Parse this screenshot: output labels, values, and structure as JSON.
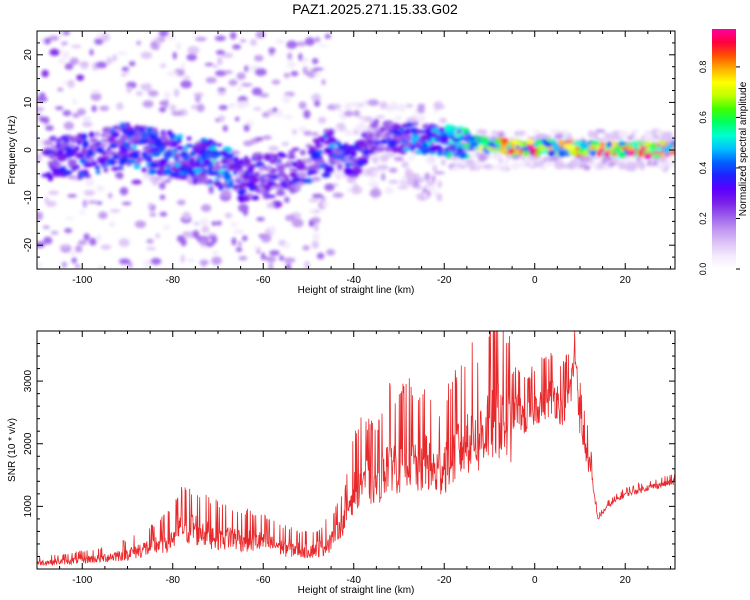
{
  "title": "PAZ1.2025.271.15.33.G02",
  "colorbar": {
    "label": "Normalized spectral amplitude",
    "range": [
      0.0,
      0.95
    ],
    "ticks": [
      "0.0",
      "0.2",
      "0.4",
      "0.6",
      "0.8"
    ],
    "colors": [
      "#ffffff",
      "#f3eafc",
      "#dcc2f6",
      "#bf93f0",
      "#9a5cec",
      "#7a1fe8",
      "#5a00ff",
      "#2020ff",
      "#0060ff",
      "#00bfff",
      "#00ffd0",
      "#00ff60",
      "#40ff00",
      "#c0ff00",
      "#ffff00",
      "#ffb000",
      "#ff5000",
      "#ff0040",
      "#ff00a0"
    ]
  },
  "chart_data": [
    {
      "type": "heatmap",
      "xlabel": "Height of straight line (km)",
      "ylabel": "Frequency (Hz)",
      "xlim": [
        -110,
        31
      ],
      "ylim": [
        -25,
        25
      ],
      "xticks": [
        -100,
        -80,
        -60,
        -40,
        -20,
        0,
        20
      ],
      "yticks": [
        20,
        10,
        0,
        -10,
        -20
      ],
      "description_points": [
        {
          "x": -100,
          "y": -1.5,
          "v": 0.35
        },
        {
          "x": -90,
          "y": 1.0,
          "v": 0.4
        },
        {
          "x": -80,
          "y": -1.0,
          "v": 0.4
        },
        {
          "x": -70,
          "y": -3.0,
          "v": 0.45
        },
        {
          "x": -65,
          "y": -6.0,
          "v": 0.35
        },
        {
          "x": -55,
          "y": -5.0,
          "v": 0.3
        },
        {
          "x": -45,
          "y": -0.5,
          "v": 0.4
        },
        {
          "x": -40,
          "y": -2.5,
          "v": 0.35
        },
        {
          "x": -35,
          "y": 3.0,
          "v": 0.3
        },
        {
          "x": -25,
          "y": 2.5,
          "v": 0.45
        },
        {
          "x": -15,
          "y": 1.5,
          "v": 0.55
        },
        {
          "x": -5,
          "y": 0.5,
          "v": 0.85
        },
        {
          "x": 5,
          "y": 0.5,
          "v": 0.8
        },
        {
          "x": 15,
          "y": 0.3,
          "v": 0.85
        },
        {
          "x": 28,
          "y": 0.0,
          "v": 0.9
        }
      ]
    },
    {
      "type": "line",
      "xlabel": "Height of straight line (km)",
      "ylabel": "SNR (10 * v/v)",
      "xlim": [
        -110,
        31
      ],
      "ylim": [
        0,
        3800
      ],
      "xticks": [
        -100,
        -80,
        -60,
        -40,
        -20,
        0,
        20
      ],
      "yticks": [
        1000,
        2000,
        3000
      ],
      "color": "#e8282a",
      "series": [
        {
          "name": "SNR",
          "x": [
            -110,
            -105,
            -100,
            -95,
            -90,
            -85,
            -80,
            -78,
            -75,
            -70,
            -65,
            -60,
            -55,
            -50,
            -47,
            -45,
            -42,
            -40,
            -38,
            -35,
            -32,
            -30,
            -28,
            -26,
            -24,
            -22,
            -20,
            -18,
            -16,
            -14,
            -12,
            -10,
            -8,
            -6,
            -4,
            -2,
            0,
            2,
            4,
            6,
            8,
            9,
            10,
            12,
            14,
            16,
            18,
            20,
            25,
            31
          ],
          "values": [
            100,
            120,
            150,
            180,
            250,
            350,
            500,
            700,
            650,
            550,
            500,
            450,
            350,
            300,
            350,
            500,
            800,
            1300,
            1500,
            1400,
            1800,
            1700,
            1900,
            1600,
            1800,
            1500,
            1700,
            1900,
            2000,
            2200,
            2100,
            2400,
            2500,
            2300,
            2600,
            2400,
            2600,
            2700,
            2800,
            2600,
            2900,
            3500,
            2400,
            1700,
            800,
            1000,
            1100,
            1200,
            1300,
            1400
          ]
        }
      ]
    }
  ]
}
